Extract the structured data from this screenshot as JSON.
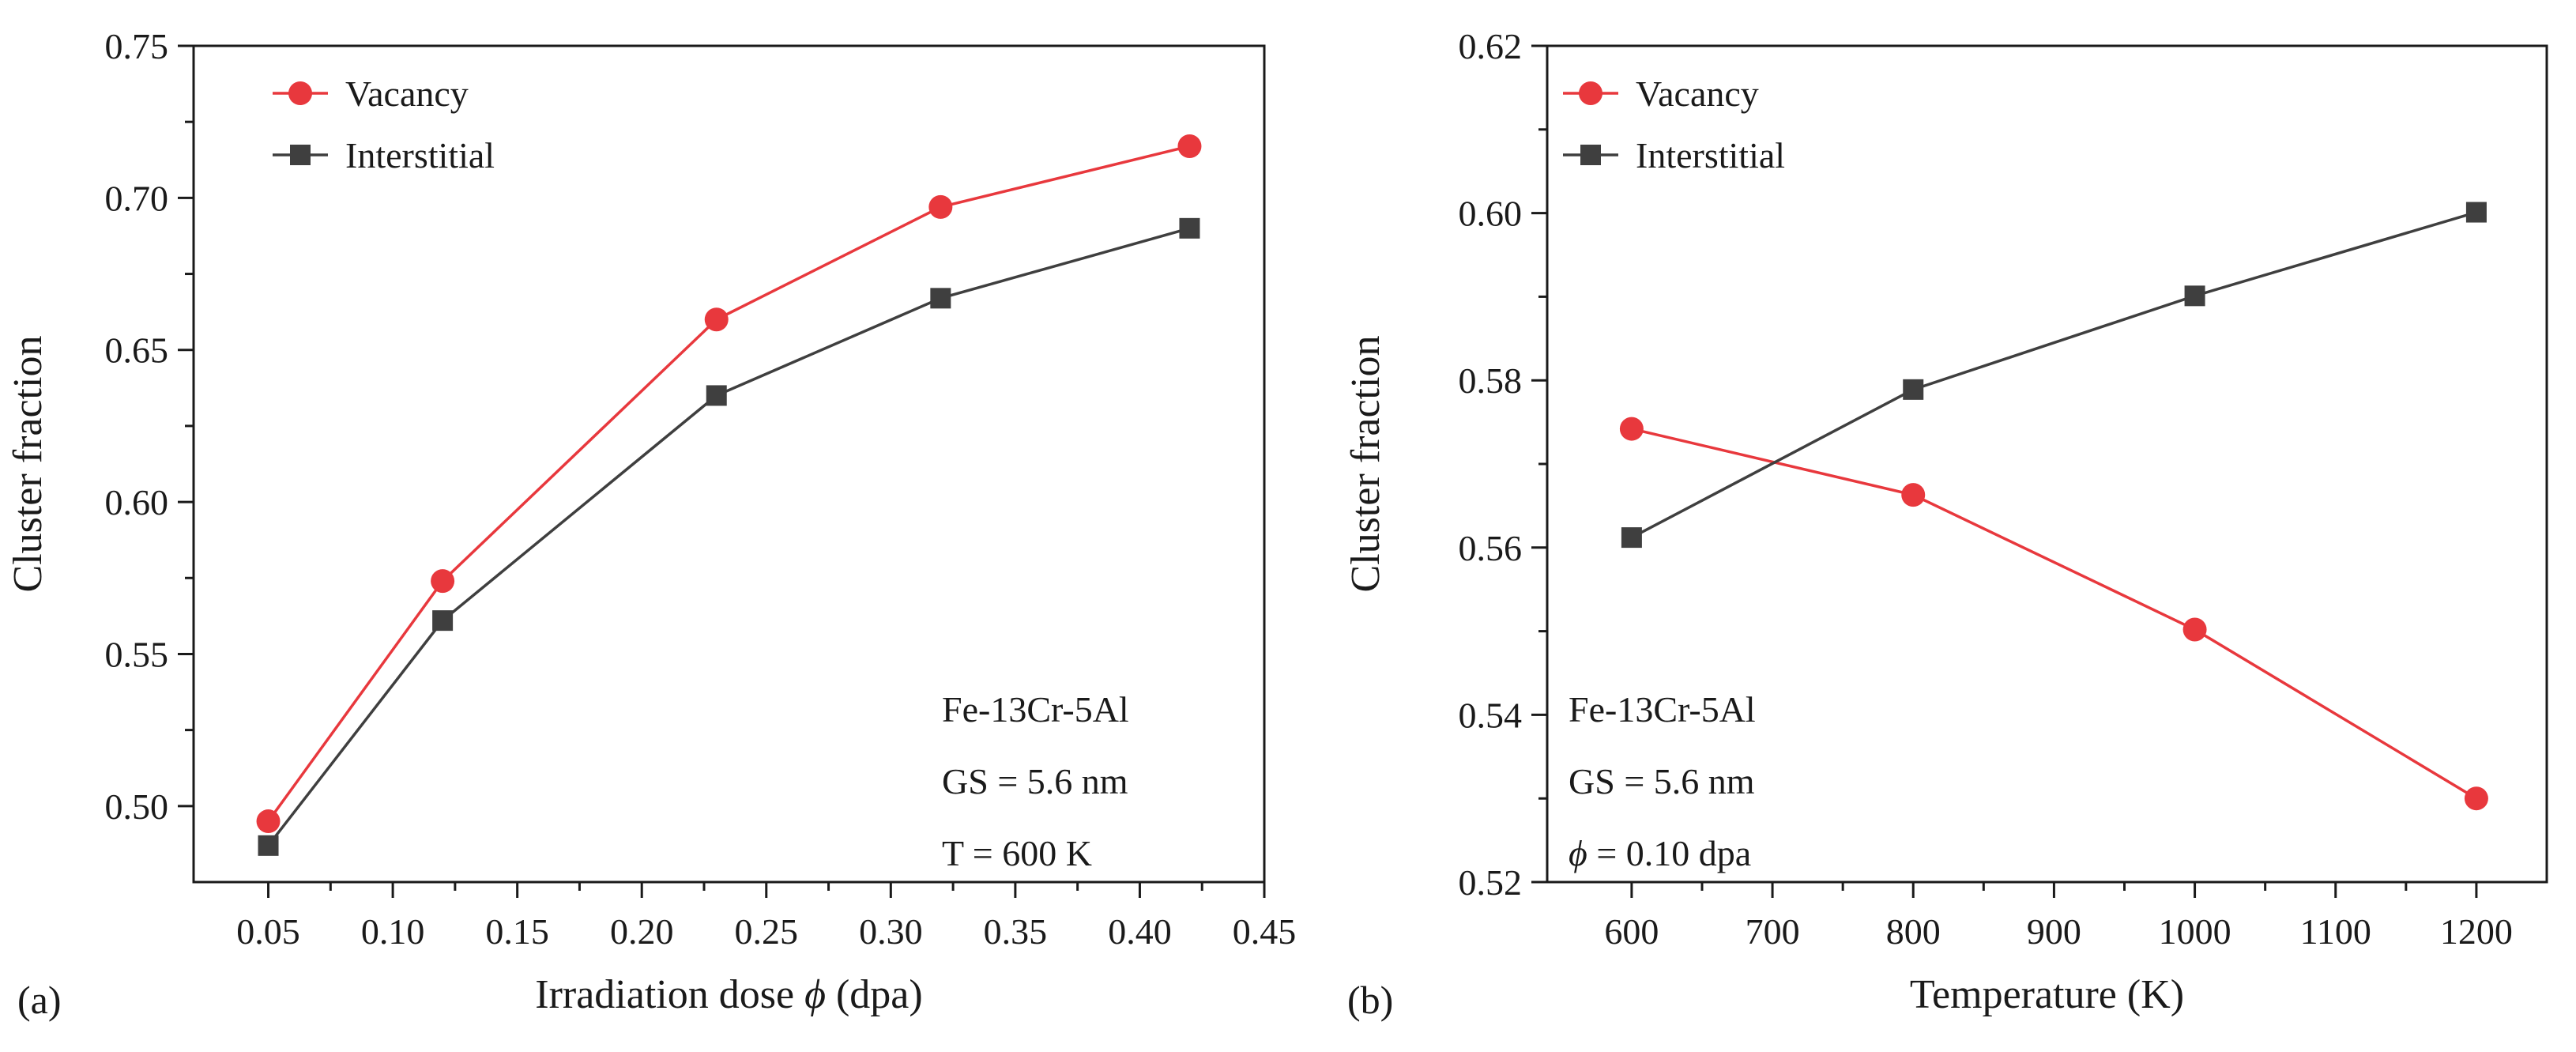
{
  "figure": {
    "colors": {
      "vacancy": "#e8383d",
      "interstitial": "#3f3f3f",
      "axis": "#1a1a1a"
    }
  },
  "chart_data": [
    {
      "type": "line",
      "panel_label": "(a)",
      "title": "",
      "xlabel_main": "Irradiation dose ",
      "xlabel_symbol": "ϕ",
      "xlabel_unit": "(dpa)",
      "ylabel": "Cluster fraction",
      "xlim": [
        0.02,
        0.45
      ],
      "ylim": [
        0.475,
        0.75
      ],
      "xticks": [
        0.05,
        0.1,
        0.15,
        0.2,
        0.25,
        0.3,
        0.35,
        0.4,
        0.45
      ],
      "xtick_labels": [
        "0.05",
        "0.10",
        "0.15",
        "0.20",
        "0.25",
        "0.30",
        "0.35",
        "0.40",
        "0.45"
      ],
      "yticks": [
        0.5,
        0.55,
        0.6,
        0.65,
        0.7,
        0.75
      ],
      "ytick_labels": [
        "0.50",
        "0.55",
        "0.60",
        "0.65",
        "0.70",
        "0.75"
      ],
      "x": [
        0.05,
        0.12,
        0.23,
        0.32,
        0.42
      ],
      "series": [
        {
          "name": "Vacancy",
          "marker": "circle",
          "color": "#e8383d",
          "values": [
            0.495,
            0.574,
            0.66,
            0.697,
            0.717
          ]
        },
        {
          "name": "Interstitial",
          "marker": "square",
          "color": "#3f3f3f",
          "values": [
            0.487,
            0.561,
            0.635,
            0.667,
            0.69
          ]
        }
      ],
      "legend_position": "top-left",
      "annotations": [
        {
          "label": "Fe-13Cr-5Al",
          "value": ""
        },
        {
          "label": "GS",
          "value": " = 5.6 nm"
        },
        {
          "label": "T",
          "value": " =  600  K"
        }
      ],
      "annotation_position": "bottom-right"
    },
    {
      "type": "line",
      "panel_label": "(b)",
      "title": "",
      "xlabel_main": "Temperature (K)",
      "xlabel_symbol": "",
      "xlabel_unit": "",
      "ylabel": "Cluster fraction",
      "xlim": [
        540,
        1250
      ],
      "ylim": [
        0.52,
        0.62
      ],
      "xticks": [
        600,
        700,
        800,
        900,
        1000,
        1100,
        1200
      ],
      "xtick_labels": [
        "600",
        "700",
        "800",
        "900",
        "1000",
        "1100",
        "1200"
      ],
      "yticks": [
        0.52,
        0.54,
        0.56,
        0.58,
        0.6,
        0.62
      ],
      "ytick_labels": [
        "0.52",
        "0.54",
        "0.56",
        "0.58",
        "0.60",
        "0.62"
      ],
      "x": [
        600,
        800,
        1000,
        1200
      ],
      "series": [
        {
          "name": "Vacancy",
          "marker": "circle",
          "color": "#e8383d",
          "values": [
            0.5742,
            0.5663,
            0.5502,
            0.53
          ]
        },
        {
          "name": "Interstitial",
          "marker": "square",
          "color": "#3f3f3f",
          "values": [
            0.5612,
            0.5789,
            0.5901,
            0.6001
          ]
        }
      ],
      "legend_position": "top-left",
      "annotations": [
        {
          "label": "Fe-13Cr-5Al",
          "value": ""
        },
        {
          "label": "GS",
          "value": " = 5.6 nm"
        },
        {
          "label": "ϕ",
          "value": "  =  0.10 dpa"
        }
      ],
      "annotation_position": "bottom-left"
    }
  ]
}
